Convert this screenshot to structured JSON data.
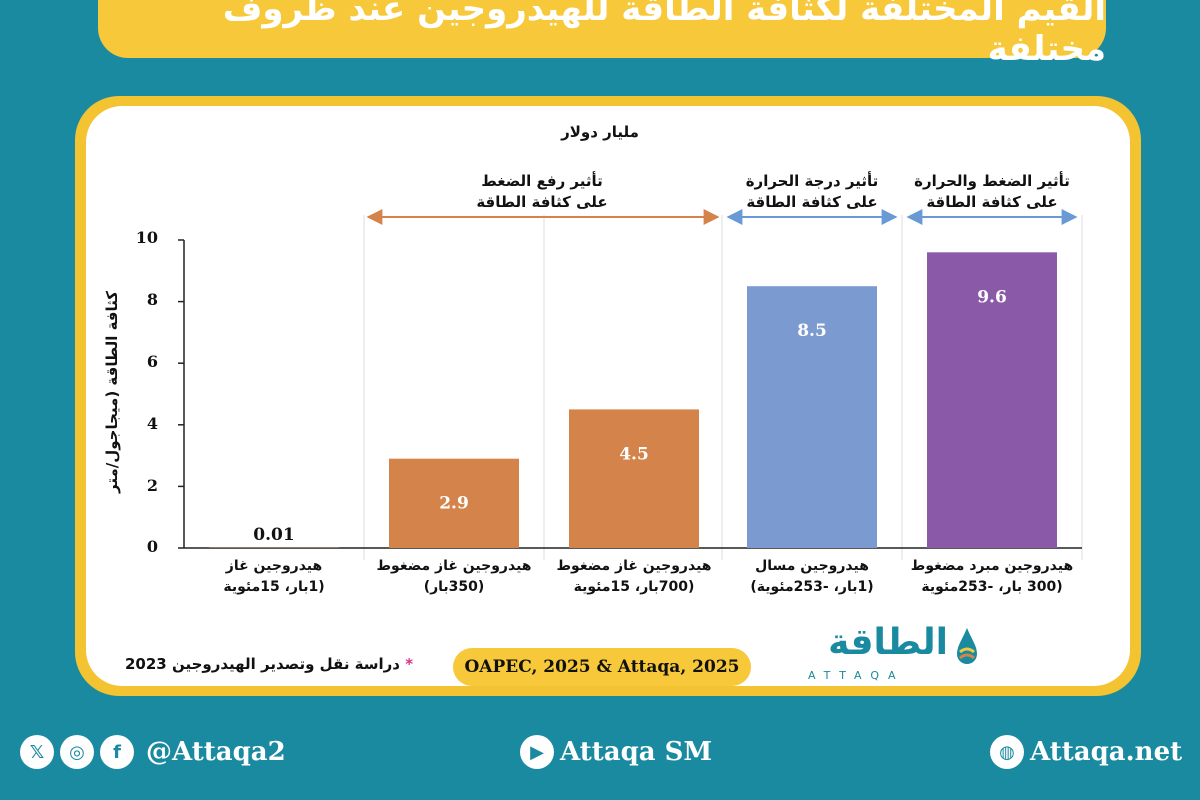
{
  "title": "القيم المختلفة لكثافة الطاقة للهيدروجين عند ظروف مختلفة",
  "colors": {
    "background": "#1a8aa0",
    "accent": "#f6c83a",
    "orange_bar": "#d4844a",
    "blue_bar": "#7b9ad0",
    "purple_bar": "#8a5aa8",
    "orange_arrow": "#d4844a",
    "blue_arrow": "#6a9ad6"
  },
  "chart_data": {
    "type": "bar",
    "unit_label": "مليار دولار",
    "ylabel": "كثافة الطاقة (ميجاجول/متر",
    "ylim": [
      0,
      10
    ],
    "yticks": [
      "0",
      "2",
      "4",
      "6",
      "8",
      "10"
    ],
    "categories": [
      {
        "line1": "هيدروجين غاز",
        "line2": "(1بار، 15مئوية"
      },
      {
        "line1": "هيدروجين غاز مضغوط",
        "line2": "(350بار)"
      },
      {
        "line1": "هيدروجين غاز مضغوط",
        "line2": "(700بار، 15مئوية"
      },
      {
        "line1": "هيدروجين مسال",
        "line2": "(1بار، -253مئوية)"
      },
      {
        "line1": "هيدروجين مبرد مضغوط",
        "line2": "(300 بار، -253مئوية"
      }
    ],
    "values": [
      0.01,
      2.9,
      4.5,
      8.5,
      9.6
    ],
    "value_labels": [
      "0.01",
      "2.9",
      "4.5",
      "8.5",
      "9.6"
    ],
    "bar_colors": [
      "#d4844a",
      "#d4844a",
      "#d4844a",
      "#7b9ad0",
      "#8a5aa8"
    ],
    "groups": [
      {
        "line1": "تأثير رفع الضغط",
        "line2": "على كثافة الطاقة",
        "color": "#d4844a"
      },
      {
        "line1": "تأثير درجة الحرارة",
        "line2": "على كثافة الطاقة",
        "color": "#6a9ad6"
      },
      {
        "line1": "تأثير الضغط  والحرارة",
        "line2": "على كثافة الطاقة",
        "color": "#6a9ad6"
      }
    ]
  },
  "source": "OAPEC, 2025 & Attaqa, 2025",
  "note": {
    "star": "*",
    "text": "دراسة نقل وتصدير الهيدروجين 2023"
  },
  "logo": {
    "arabic": "الطاقة",
    "english": "ATTAQA"
  },
  "footer": {
    "social_handle": "@Attaqa2",
    "youtube": "Attaqa SM",
    "website": "Attaqa.net"
  }
}
